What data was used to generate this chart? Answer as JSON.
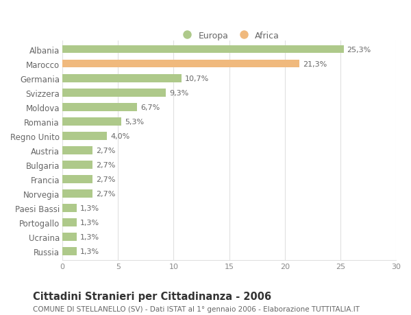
{
  "categories": [
    "Albania",
    "Marocco",
    "Germania",
    "Svizzera",
    "Moldova",
    "Romania",
    "Regno Unito",
    "Austria",
    "Bulgaria",
    "Francia",
    "Norvegia",
    "Paesi Bassi",
    "Portogallo",
    "Ucraina",
    "Russia"
  ],
  "values": [
    25.3,
    21.3,
    10.7,
    9.3,
    6.7,
    5.3,
    4.0,
    2.7,
    2.7,
    2.7,
    2.7,
    1.3,
    1.3,
    1.3,
    1.3
  ],
  "labels": [
    "25,3%",
    "21,3%",
    "10,7%",
    "9,3%",
    "6,7%",
    "5,3%",
    "4,0%",
    "2,7%",
    "2,7%",
    "2,7%",
    "2,7%",
    "1,3%",
    "1,3%",
    "1,3%",
    "1,3%"
  ],
  "colors": [
    "#aec98a",
    "#f0b97d",
    "#aec98a",
    "#aec98a",
    "#aec98a",
    "#aec98a",
    "#aec98a",
    "#aec98a",
    "#aec98a",
    "#aec98a",
    "#aec98a",
    "#aec98a",
    "#aec98a",
    "#aec98a",
    "#aec98a"
  ],
  "legend_europa_color": "#aec98a",
  "legend_africa_color": "#f0b97d",
  "title": "Cittadini Stranieri per Cittadinanza - 2006",
  "subtitle": "COMUNE DI STELLANELLO (SV) - Dati ISTAT al 1° gennaio 2006 - Elaborazione TUTTITALIA.IT",
  "xlim": [
    0,
    30
  ],
  "xticks": [
    0,
    5,
    10,
    15,
    20,
    25,
    30
  ],
  "background_color": "#ffffff",
  "grid_color": "#e0e0e0",
  "bar_height": 0.55,
  "label_fontsize": 8,
  "title_fontsize": 10.5,
  "subtitle_fontsize": 7.5,
  "tick_fontsize": 8,
  "ytick_fontsize": 8.5,
  "legend_fontsize": 9
}
